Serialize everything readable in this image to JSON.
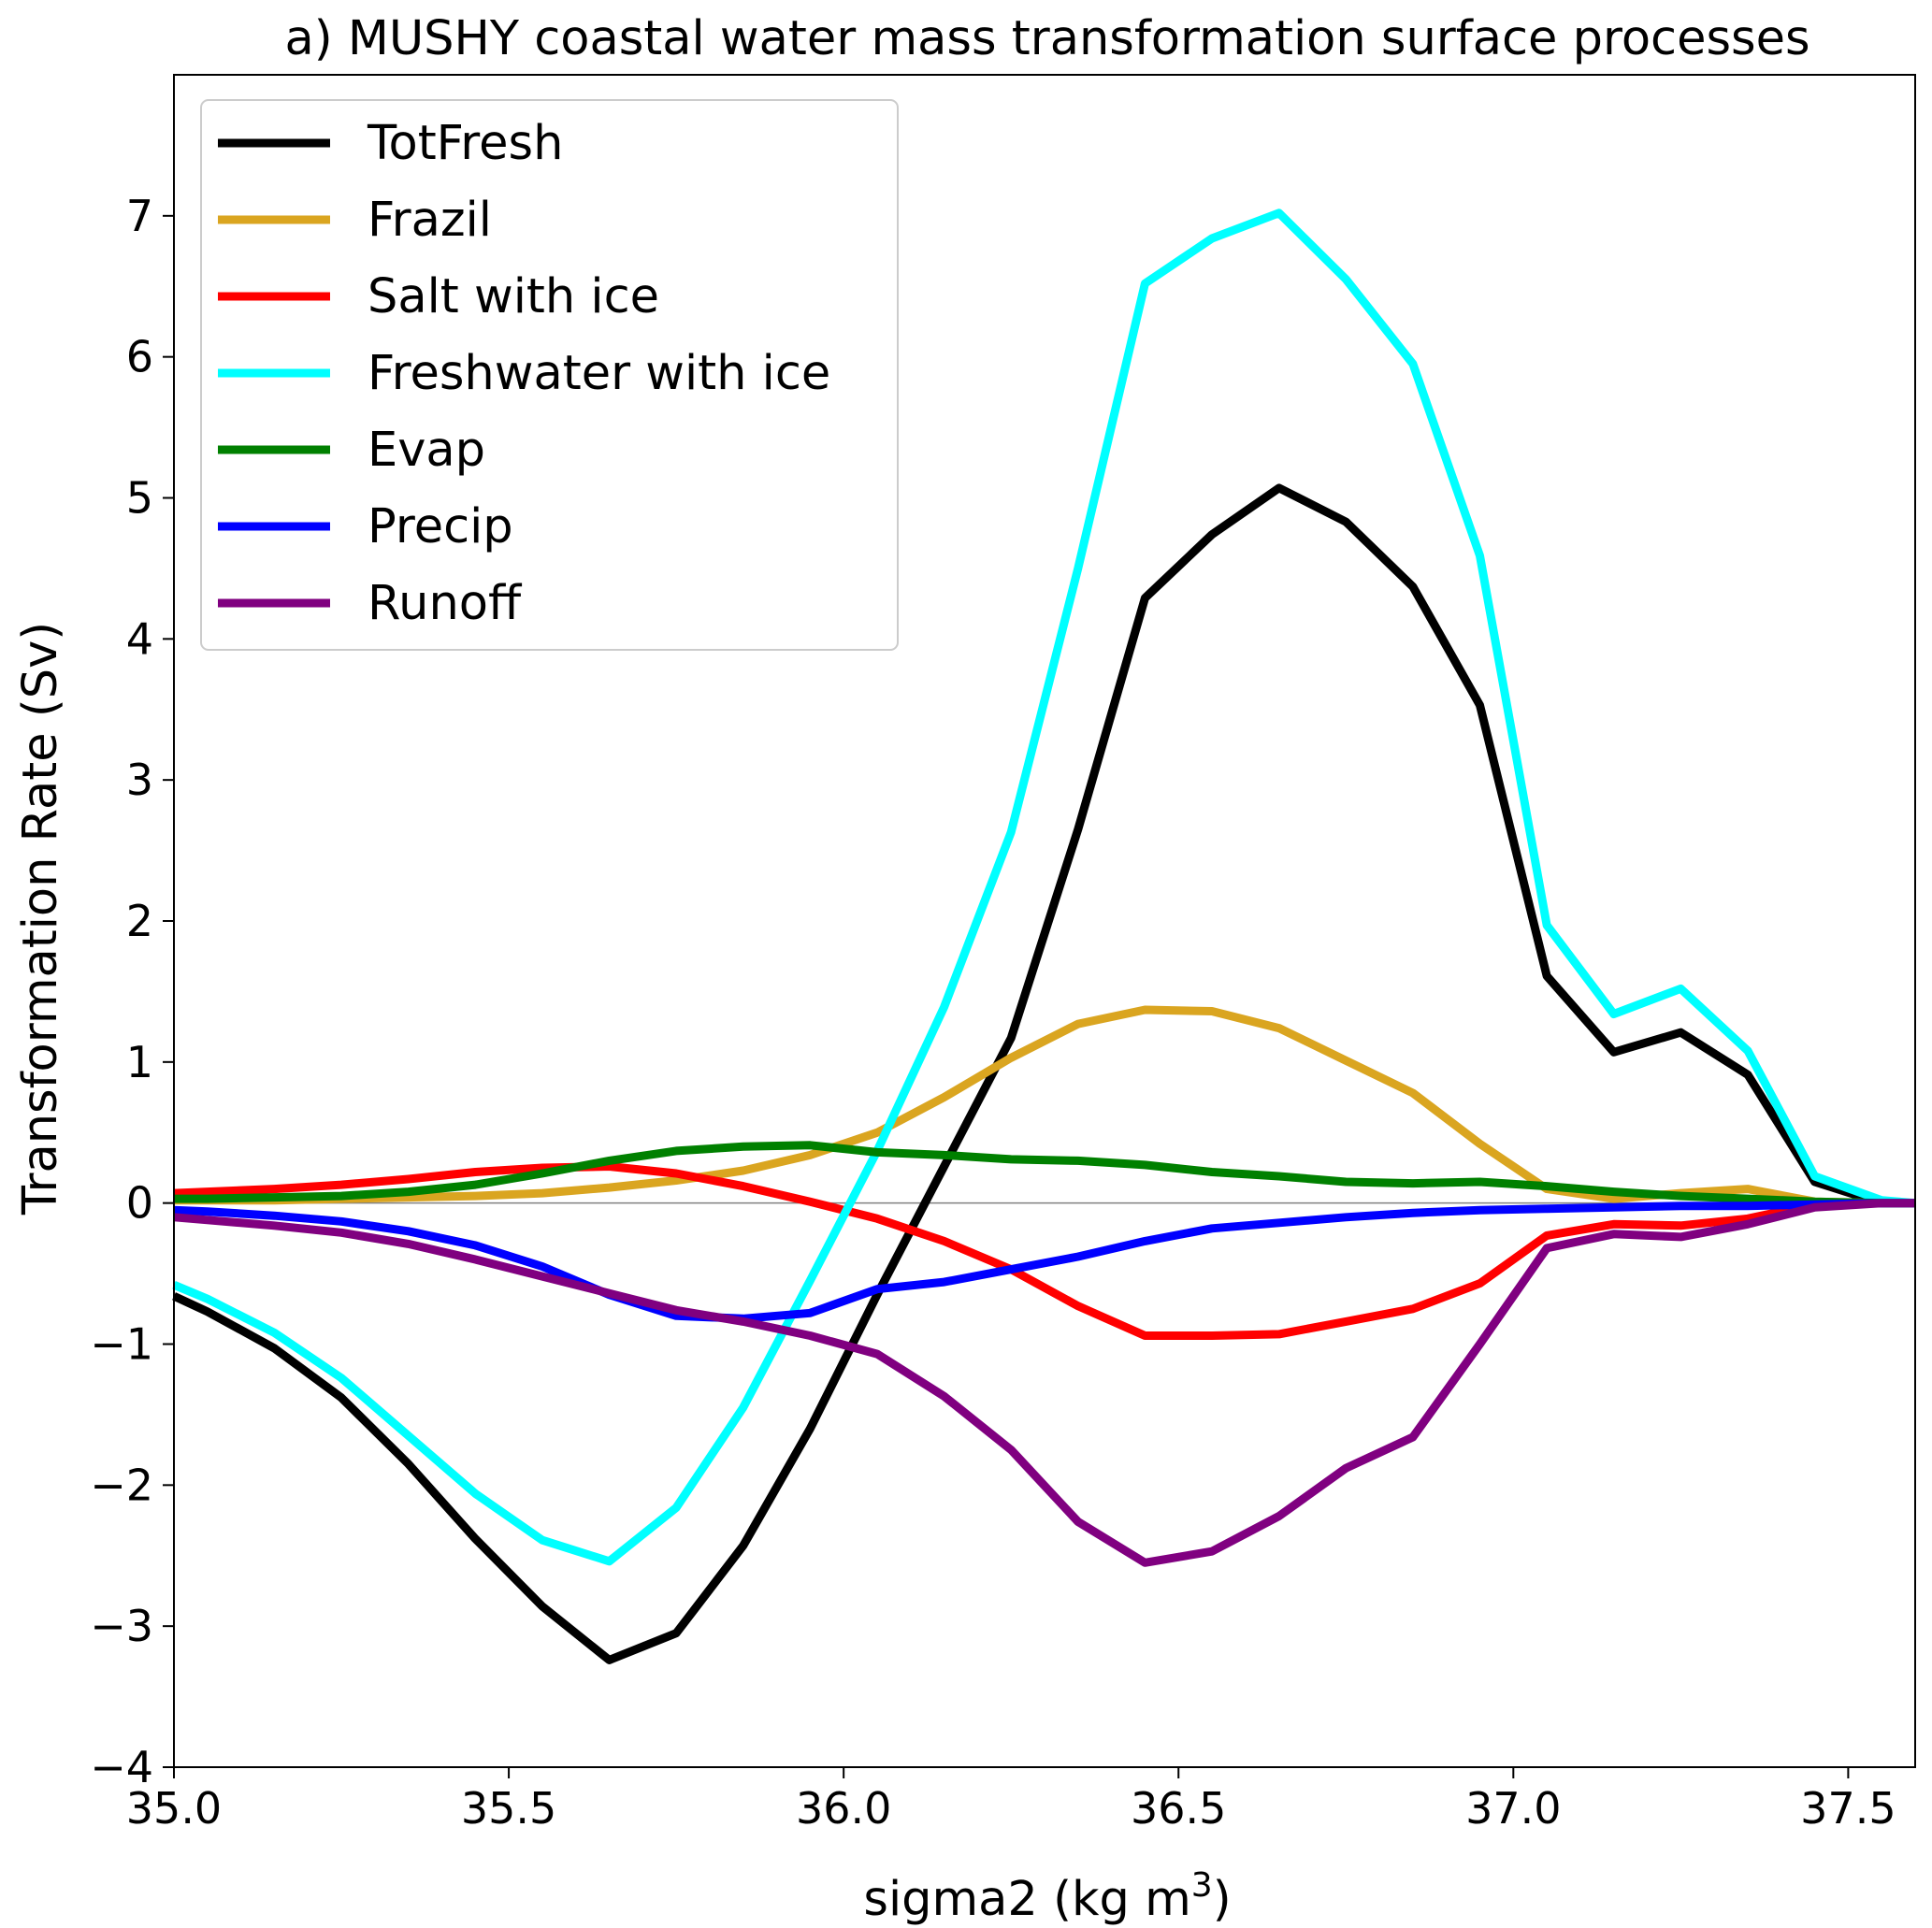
{
  "chart_data": {
    "type": "line",
    "title": "a) MUSHY coastal water mass transformation surface processes",
    "xlabel": "sigma2 (kg m",
    "xlabel_superscript": "3",
    "xlabel_suffix": ")",
    "ylabel": "Transformation Rate (Sv)",
    "xlim": [
      35.0,
      37.6
    ],
    "ylim": [
      -4,
      8
    ],
    "xticks": [
      35.0,
      35.5,
      36.0,
      36.5,
      37.0,
      37.5
    ],
    "xtick_labels": [
      "35.0",
      "35.5",
      "36.0",
      "36.5",
      "37.0",
      "37.5"
    ],
    "yticks": [
      -4,
      -3,
      -2,
      -1,
      0,
      1,
      2,
      3,
      4,
      5,
      6,
      7
    ],
    "ytick_labels": [
      "−4",
      "−3",
      "−2",
      "−1",
      "0",
      "1",
      "2",
      "3",
      "4",
      "5",
      "6",
      "7"
    ],
    "legend_position": "top-left",
    "grid": false,
    "zero_line": true,
    "x": [
      35.0,
      35.05,
      35.15,
      35.25,
      35.35,
      35.45,
      35.55,
      35.65,
      35.75,
      35.85,
      35.95,
      36.05,
      36.15,
      36.25,
      36.35,
      36.45,
      36.55,
      36.65,
      36.75,
      36.85,
      36.95,
      37.05,
      37.15,
      37.25,
      37.35,
      37.45,
      37.55,
      37.6
    ],
    "series": [
      {
        "name": "TotFresh",
        "color": "#000000",
        "values": [
          -0.66,
          -0.77,
          -1.03,
          -1.38,
          -1.85,
          -2.38,
          -2.86,
          -3.24,
          -3.05,
          -2.43,
          -1.6,
          -0.65,
          0.26,
          1.17,
          2.65,
          4.29,
          4.74,
          5.07,
          4.83,
          4.37,
          3.53,
          1.61,
          1.07,
          1.21,
          0.91,
          0.15,
          0.0,
          0.0
        ]
      },
      {
        "name": "Frazil",
        "color": "#daa520",
        "values": [
          0.02,
          0.02,
          0.02,
          0.03,
          0.04,
          0.05,
          0.07,
          0.11,
          0.16,
          0.23,
          0.34,
          0.5,
          0.75,
          1.03,
          1.27,
          1.37,
          1.36,
          1.24,
          1.01,
          0.78,
          0.42,
          0.1,
          0.03,
          0.07,
          0.1,
          0.01,
          0.0,
          0.0
        ]
      },
      {
        "name": "Salt with ice",
        "color": "#ff0000",
        "values": [
          0.07,
          0.08,
          0.1,
          0.13,
          0.17,
          0.22,
          0.25,
          0.26,
          0.21,
          0.12,
          0.01,
          -0.11,
          -0.27,
          -0.47,
          -0.73,
          -0.94,
          -0.94,
          -0.93,
          -0.84,
          -0.75,
          -0.57,
          -0.23,
          -0.15,
          -0.16,
          -0.11,
          -0.01,
          0.0,
          0.0
        ]
      },
      {
        "name": "Freshwater with ice",
        "color": "#00ffff",
        "values": [
          -0.58,
          -0.68,
          -0.92,
          -1.24,
          -1.65,
          -2.06,
          -2.39,
          -2.54,
          -2.16,
          -1.45,
          -0.55,
          0.37,
          1.39,
          2.63,
          4.5,
          6.52,
          6.84,
          7.02,
          6.55,
          5.95,
          4.59,
          1.97,
          1.34,
          1.52,
          1.08,
          0.19,
          0.02,
          0.0
        ]
      },
      {
        "name": "Evap",
        "color": "#008000",
        "values": [
          0.03,
          0.03,
          0.04,
          0.05,
          0.08,
          0.13,
          0.21,
          0.3,
          0.37,
          0.4,
          0.41,
          0.36,
          0.34,
          0.31,
          0.3,
          0.27,
          0.22,
          0.19,
          0.15,
          0.14,
          0.15,
          0.12,
          0.08,
          0.05,
          0.03,
          0.01,
          0.0,
          0.0
        ]
      },
      {
        "name": "Precip",
        "color": "#0000ff",
        "values": [
          -0.05,
          -0.06,
          -0.09,
          -0.13,
          -0.2,
          -0.3,
          -0.45,
          -0.65,
          -0.8,
          -0.82,
          -0.78,
          -0.61,
          -0.56,
          -0.47,
          -0.38,
          -0.27,
          -0.18,
          -0.14,
          -0.1,
          -0.07,
          -0.05,
          -0.04,
          -0.03,
          -0.02,
          -0.02,
          -0.01,
          0.0,
          0.0
        ]
      },
      {
        "name": "Runoff",
        "color": "#800080",
        "values": [
          -0.1,
          -0.12,
          -0.16,
          -0.21,
          -0.29,
          -0.4,
          -0.52,
          -0.64,
          -0.76,
          -0.84,
          -0.94,
          -1.07,
          -1.37,
          -1.75,
          -2.26,
          -2.55,
          -2.47,
          -2.22,
          -1.88,
          -1.66,
          -1.0,
          -0.32,
          -0.22,
          -0.24,
          -0.15,
          -0.03,
          0.0,
          0.0
        ]
      }
    ]
  }
}
